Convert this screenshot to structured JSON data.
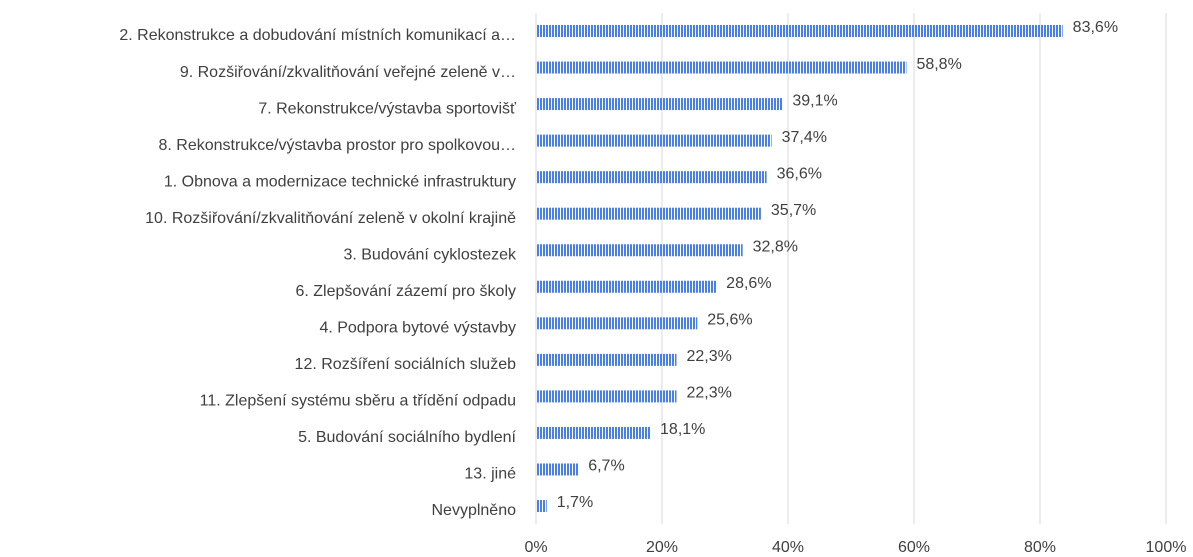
{
  "chart_data": {
    "type": "bar",
    "orientation": "horizontal",
    "categories": [
      "2. Rekonstrukce a dobudování místních komunikací a…",
      "9. Rozšiřování/zkvalitňování veřejné zeleně v…",
      "7. Rekonstrukce/výstavba sportovišť",
      "8. Rekonstrukce/výstavba prostor pro spolkovou…",
      "1. Obnova a modernizace technické infrastruktury",
      "10. Rozšiřování/zkvalitňování zeleně v okolní krajině",
      "3. Budování cyklostezek",
      "6. Zlepšování zázemí pro školy",
      "4. Podpora bytové výstavby",
      "12. Rozšíření sociálních služeb",
      "11. Zlepšení systému sběru a třídění odpadu",
      "5. Budování sociálního bydlení",
      "13. jiné",
      "Nevyplněno"
    ],
    "values": [
      83.6,
      58.8,
      39.1,
      37.4,
      36.6,
      35.7,
      32.8,
      28.6,
      25.6,
      22.3,
      22.3,
      18.1,
      6.7,
      1.7
    ],
    "value_labels": [
      "83,6%",
      "58,8%",
      "39,1%",
      "37,4%",
      "36,6%",
      "35,7%",
      "32,8%",
      "28,6%",
      "25,6%",
      "22,3%",
      "22,3%",
      "18,1%",
      "6,7%",
      "1,7%"
    ],
    "color": "#4a7fe3",
    "xlim": [
      0,
      100
    ],
    "xticks": [
      {
        "value": 0,
        "label": "0%"
      },
      {
        "value": 20,
        "label": "20%"
      },
      {
        "value": 40,
        "label": "40%"
      },
      {
        "value": 60,
        "label": "60%"
      },
      {
        "value": 80,
        "label": "80%"
      },
      {
        "value": 100,
        "label": "100%"
      }
    ],
    "grid": true
  }
}
